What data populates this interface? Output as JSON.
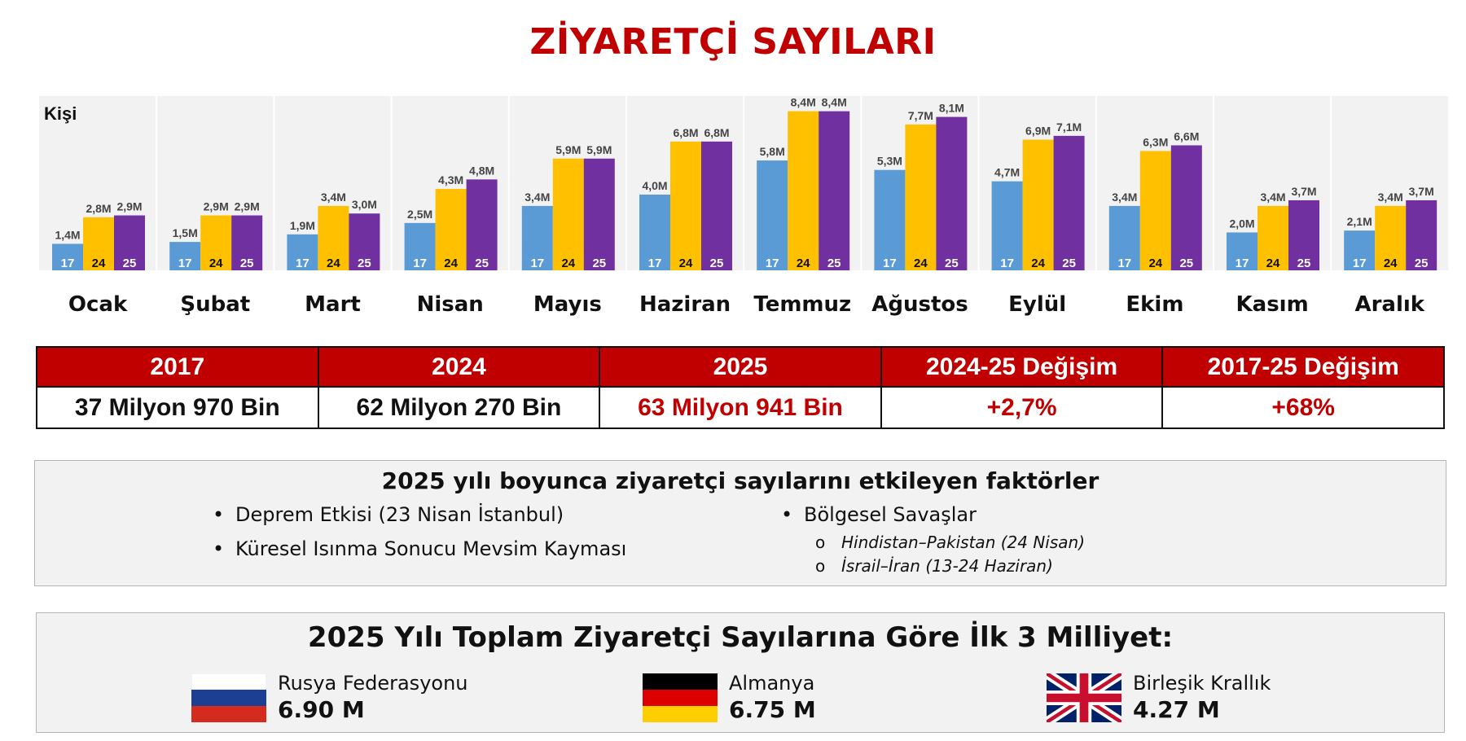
{
  "title": "ZİYARETÇİ SAYILARI",
  "colors": {
    "accent": "#c00000",
    "y2017": "#5b9bd5",
    "y2024": "#ffc000",
    "y2025": "#7030a0"
  },
  "chart_data": {
    "type": "bar",
    "ylabel": "Kişi",
    "ylim": [
      0,
      9.2
    ],
    "unit": "M",
    "categories": [
      "Ocak",
      "Şubat",
      "Mart",
      "Nisan",
      "Mayıs",
      "Haziran",
      "Temmuz",
      "Ağustos",
      "Eylül",
      "Ekim",
      "Kasım",
      "Aralık"
    ],
    "series": [
      {
        "name": "17",
        "values": [
          1.4,
          1.5,
          1.9,
          2.5,
          3.4,
          4.0,
          5.8,
          5.3,
          4.7,
          3.4,
          2.0,
          2.1
        ],
        "labels": [
          "1,4M",
          "1,5M",
          "1,9M",
          "2,5M",
          "3,4M",
          "4,0M",
          "5,8M",
          "5,3M",
          "4,7M",
          "3,4M",
          "2,0M",
          "2,1M"
        ]
      },
      {
        "name": "24",
        "values": [
          2.8,
          2.9,
          3.4,
          4.3,
          5.9,
          6.8,
          8.4,
          7.7,
          6.9,
          6.3,
          3.4,
          3.4
        ],
        "labels": [
          "2,8M",
          "2,9M",
          "3,4M",
          "4,3M",
          "5,9M",
          "6,8M",
          "8,4M",
          "7,7M",
          "6,9M",
          "6,3M",
          "3,4M",
          "3,4M"
        ]
      },
      {
        "name": "25",
        "values": [
          2.9,
          2.9,
          3.0,
          4.8,
          5.9,
          6.8,
          8.4,
          8.1,
          7.1,
          6.6,
          3.7,
          3.7
        ],
        "labels": [
          "2,9M",
          "2,9M",
          "3,0M",
          "4,8M",
          "5,9M",
          "6,8M",
          "8,4M",
          "8,1M",
          "7,1M",
          "6,6M",
          "3,7M",
          "3,7M"
        ]
      }
    ]
  },
  "stats_table": {
    "headers": [
      "2017",
      "2024",
      "2025",
      "2024-25 Değişim",
      "2017-25 Değişim"
    ],
    "values": [
      "37 Milyon 970 Bin",
      "62 Milyon 270 Bin",
      "63 Milyon 941 Bin",
      "+2,7%",
      "+68%"
    ]
  },
  "factors": {
    "title": "2025 yılı boyunca ziyaretçi sayılarını etkileyen faktörler",
    "bullet_symbol": "•",
    "sub_symbol": "o",
    "left_items": [
      "Deprem Etkisi (23 Nisan İstanbul)",
      "Küresel Isınma Sonucu Mevsim Kayması"
    ],
    "right_item": "Bölgesel Savaşlar",
    "sub_items": [
      "Hindistan–Pakistan (24 Nisan)",
      "İsrail–İran  (13-24 Haziran)"
    ]
  },
  "nationalities": {
    "title": "2025 Yılı Toplam Ziyaretçi Sayılarına Göre İlk 3 Milliyet:",
    "items": [
      {
        "country": "Rusya Federasyonu",
        "value": "6.90 M",
        "flag": "russia-flag"
      },
      {
        "country": "Almanya",
        "value": "6.75 M",
        "flag": "germany-flag"
      },
      {
        "country": "Birleşik Krallık",
        "value": "4.27 M",
        "flag": "uk-flag"
      }
    ]
  }
}
